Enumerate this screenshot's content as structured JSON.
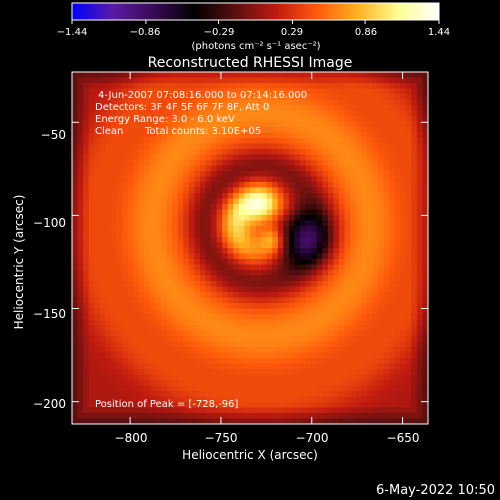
{
  "chart_data": {
    "type": "heatmap",
    "title": "Reconstructed RHESSI Image",
    "xlabel": "Heliocentric X (arcsec)",
    "ylabel": "Heliocentric Y (arcsec)",
    "xlim": [
      -832,
      -636
    ],
    "ylim": [
      -212,
      -23
    ],
    "x_ticks": [
      -800,
      -750,
      -700,
      -650
    ],
    "y_ticks": [
      -50,
      -100,
      -150,
      -200
    ],
    "x_tick_labels": [
      "−800",
      "−750",
      "−700",
      "−650"
    ],
    "y_tick_labels": [
      "−50",
      "−100",
      "−150",
      "−200"
    ],
    "colorbar": {
      "min": -1.44,
      "max": 1.44,
      "ticks": [
        -1.44,
        -0.86,
        -0.29,
        0.29,
        0.86,
        1.44
      ],
      "tick_labels": [
        "−1.44",
        "−0.86",
        "−0.29",
        "0.29",
        "0.86",
        "1.44"
      ],
      "unit_label": "(photons cm⁻² s⁻¹ asec⁻²)",
      "colors": [
        "#0000ff",
        "#5a1aa6",
        "#3a0a55",
        "#000000",
        "#5a0f10",
        "#c01a10",
        "#ff5a0a",
        "#ffb020",
        "#ffff90",
        "#ffffff"
      ]
    },
    "annotations": {
      "time_range": "4-Jun-2007 07:08:16.000 to 07:14:16.000",
      "detectors": "Detectors: 3F 4F 5F 6F 7F 8F, Att 0",
      "energy_range": "Energy Range: 3.0 - 6.0 keV",
      "clean_label": "Clean",
      "total_counts": "Total counts: 3.10E+05",
      "peak_position": "Position of Peak = [-728,-96]"
    },
    "image_model": {
      "peak": [
        -728,
        -96
      ],
      "core_center": [
        -728,
        -105
      ],
      "ring_radius": 60,
      "ring_width": 22,
      "ring_level": 0.55,
      "peak_level": 1.44,
      "dark_spot": [
        -705,
        -112
      ],
      "dark_level": -0.6
    }
  },
  "footer": {
    "timestamp": "6-May-2022 10:50"
  }
}
